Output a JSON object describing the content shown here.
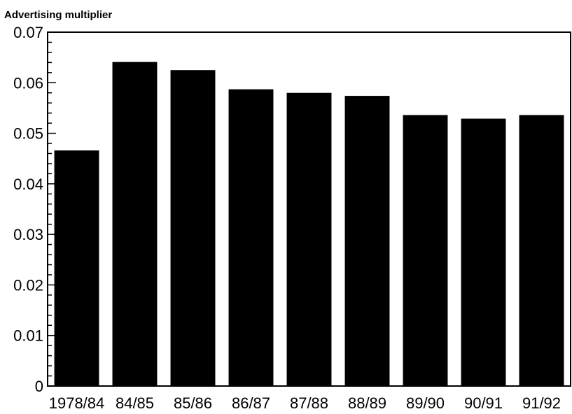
{
  "chart_data": {
    "type": "bar",
    "title": "",
    "xlabel": "",
    "ylabel": "Advertising multiplier",
    "categories": [
      "1978/84",
      "84/85",
      "85/86",
      "86/87",
      "87/88",
      "88/89",
      "89/90",
      "90/91",
      "91/92"
    ],
    "values": [
      0.0466,
      0.0641,
      0.0625,
      0.0587,
      0.058,
      0.0574,
      0.0536,
      0.0529,
      0.0536
    ],
    "ylim": [
      0,
      0.07
    ],
    "yticks": [
      0,
      0.01,
      0.02,
      0.03,
      0.04,
      0.05,
      0.06,
      0.07
    ],
    "ytick_labels": [
      "0",
      "0.01",
      "0.02",
      "0.03",
      "0.04",
      "0.05",
      "0.06",
      "0.07"
    ],
    "grid": false,
    "bar_color": "#000000"
  }
}
